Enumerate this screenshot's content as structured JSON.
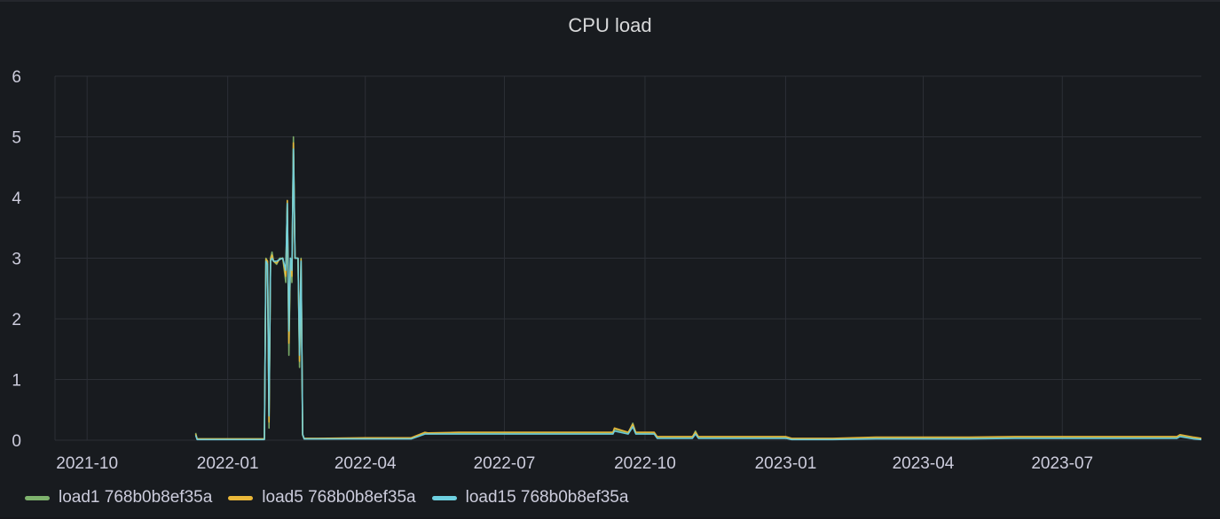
{
  "panel": {
    "title": "CPU load"
  },
  "chart_data": {
    "type": "line",
    "title": "CPU load",
    "xlabel": "",
    "ylabel": "",
    "ylim": [
      0,
      6
    ],
    "xlim": [
      "2021-09-10",
      "2023-09-30"
    ],
    "yticks": [
      "0",
      "1",
      "2",
      "3",
      "4",
      "5",
      "6"
    ],
    "xticks": [
      "2021-10",
      "2022-01",
      "2022-04",
      "2022-07",
      "2022-10",
      "2023-01",
      "2023-04",
      "2023-07"
    ],
    "grid": true,
    "legend_position": "bottom-left",
    "series": [
      {
        "name": "load1 768b0b8ef35a",
        "color": "#7eb26d",
        "x": [
          "2021-12-11",
          "2021-12-12",
          "2022-01-25",
          "2022-01-26",
          "2022-01-27",
          "2022-01-28",
          "2022-01-29",
          "2022-01-30",
          "2022-01-31",
          "2022-02-02",
          "2022-02-04",
          "2022-02-06",
          "2022-02-08",
          "2022-02-09",
          "2022-02-10",
          "2022-02-11",
          "2022-02-12",
          "2022-02-13",
          "2022-02-14",
          "2022-02-16",
          "2022-02-17",
          "2022-02-18",
          "2022-02-19",
          "2022-02-20",
          "2022-02-22",
          "2022-03-01",
          "2022-04-01",
          "2022-05-01",
          "2022-05-10",
          "2022-05-12",
          "2022-06-01",
          "2022-07-01",
          "2022-08-01",
          "2022-09-01",
          "2022-09-10",
          "2022-09-11",
          "2022-09-20",
          "2022-09-23",
          "2022-09-25",
          "2022-10-01",
          "2022-10-07",
          "2022-10-09",
          "2022-11-01",
          "2022-11-03",
          "2022-11-05",
          "2022-12-01",
          "2023-01-01",
          "2023-01-05",
          "2023-02-01",
          "2023-03-01",
          "2023-04-01",
          "2023-05-01",
          "2023-06-01",
          "2023-07-01",
          "2023-08-01",
          "2023-09-01",
          "2023-09-14",
          "2023-09-16",
          "2023-09-25",
          "2023-09-30"
        ],
        "values": [
          0.12,
          0.02,
          0.02,
          3.0,
          2.95,
          0.2,
          3.0,
          3.1,
          2.95,
          2.9,
          3.0,
          3.0,
          2.6,
          3.95,
          1.4,
          3.0,
          2.6,
          5.0,
          3.0,
          3.0,
          1.2,
          3.0,
          0.08,
          0.02,
          0.02,
          0.02,
          0.03,
          0.03,
          0.12,
          0.11,
          0.12,
          0.12,
          0.12,
          0.12,
          0.12,
          0.18,
          0.12,
          0.28,
          0.12,
          0.12,
          0.12,
          0.05,
          0.05,
          0.15,
          0.05,
          0.05,
          0.05,
          0.02,
          0.02,
          0.04,
          0.04,
          0.04,
          0.05,
          0.05,
          0.05,
          0.05,
          0.05,
          0.08,
          0.04,
          0.02
        ]
      },
      {
        "name": "load5 768b0b8ef35a",
        "color": "#eab839",
        "x": [
          "2021-12-11",
          "2021-12-12",
          "2022-01-25",
          "2022-01-26",
          "2022-01-27",
          "2022-01-28",
          "2022-01-29",
          "2022-01-30",
          "2022-01-31",
          "2022-02-02",
          "2022-02-04",
          "2022-02-06",
          "2022-02-08",
          "2022-02-09",
          "2022-02-10",
          "2022-02-11",
          "2022-02-12",
          "2022-02-13",
          "2022-02-14",
          "2022-02-16",
          "2022-02-17",
          "2022-02-18",
          "2022-02-19",
          "2022-02-20",
          "2022-02-22",
          "2022-03-01",
          "2022-04-01",
          "2022-05-01",
          "2022-05-10",
          "2022-05-12",
          "2022-06-01",
          "2022-07-01",
          "2022-08-01",
          "2022-09-01",
          "2022-09-10",
          "2022-09-11",
          "2022-09-20",
          "2022-09-23",
          "2022-09-25",
          "2022-10-01",
          "2022-10-07",
          "2022-10-09",
          "2022-11-01",
          "2022-11-03",
          "2022-11-05",
          "2022-12-01",
          "2023-01-01",
          "2023-01-05",
          "2023-02-01",
          "2023-03-01",
          "2023-04-01",
          "2023-05-01",
          "2023-06-01",
          "2023-07-01",
          "2023-08-01",
          "2023-09-01",
          "2023-09-14",
          "2023-09-16",
          "2023-09-25",
          "2023-09-30"
        ],
        "values": [
          0.1,
          0.02,
          0.02,
          2.98,
          2.95,
          0.3,
          2.98,
          3.05,
          2.95,
          2.92,
          2.98,
          3.0,
          2.7,
          3.95,
          1.6,
          3.0,
          2.7,
          4.9,
          3.0,
          3.0,
          1.3,
          2.98,
          0.09,
          0.03,
          0.03,
          0.03,
          0.04,
          0.04,
          0.13,
          0.12,
          0.13,
          0.13,
          0.13,
          0.13,
          0.13,
          0.2,
          0.13,
          0.26,
          0.13,
          0.13,
          0.13,
          0.06,
          0.06,
          0.13,
          0.06,
          0.06,
          0.06,
          0.03,
          0.03,
          0.05,
          0.05,
          0.05,
          0.06,
          0.06,
          0.06,
          0.06,
          0.06,
          0.09,
          0.05,
          0.03
        ]
      },
      {
        "name": "load15 768b0b8ef35a",
        "color": "#6ed0e0",
        "x": [
          "2021-12-11",
          "2021-12-12",
          "2022-01-25",
          "2022-01-26",
          "2022-01-27",
          "2022-01-28",
          "2022-01-29",
          "2022-01-30",
          "2022-01-31",
          "2022-02-02",
          "2022-02-04",
          "2022-02-06",
          "2022-02-08",
          "2022-02-09",
          "2022-02-10",
          "2022-02-11",
          "2022-02-12",
          "2022-02-13",
          "2022-02-14",
          "2022-02-16",
          "2022-02-17",
          "2022-02-18",
          "2022-02-19",
          "2022-02-20",
          "2022-02-22",
          "2022-03-01",
          "2022-04-01",
          "2022-05-01",
          "2022-05-10",
          "2022-05-12",
          "2022-06-01",
          "2022-07-01",
          "2022-08-01",
          "2022-09-01",
          "2022-09-10",
          "2022-09-11",
          "2022-09-20",
          "2022-09-23",
          "2022-09-25",
          "2022-10-01",
          "2022-10-07",
          "2022-10-09",
          "2022-11-01",
          "2022-11-03",
          "2022-11-05",
          "2022-12-01",
          "2023-01-01",
          "2023-01-05",
          "2023-02-01",
          "2023-03-01",
          "2023-04-01",
          "2023-05-01",
          "2023-06-01",
          "2023-07-01",
          "2023-08-01",
          "2023-09-01",
          "2023-09-14",
          "2023-09-16",
          "2023-09-25",
          "2023-09-30"
        ],
        "values": [
          0.08,
          0.01,
          0.01,
          2.95,
          2.9,
          0.4,
          2.95,
          3.0,
          2.95,
          2.95,
          2.98,
          3.0,
          2.8,
          3.9,
          1.8,
          3.0,
          2.8,
          4.8,
          3.0,
          3.0,
          1.4,
          2.95,
          0.1,
          0.02,
          0.02,
          0.02,
          0.02,
          0.02,
          0.1,
          0.1,
          0.1,
          0.1,
          0.1,
          0.1,
          0.1,
          0.15,
          0.1,
          0.22,
          0.1,
          0.1,
          0.1,
          0.03,
          0.03,
          0.1,
          0.03,
          0.03,
          0.03,
          0.01,
          0.01,
          0.02,
          0.02,
          0.02,
          0.03,
          0.03,
          0.03,
          0.03,
          0.03,
          0.06,
          0.02,
          0.01
        ]
      }
    ]
  }
}
